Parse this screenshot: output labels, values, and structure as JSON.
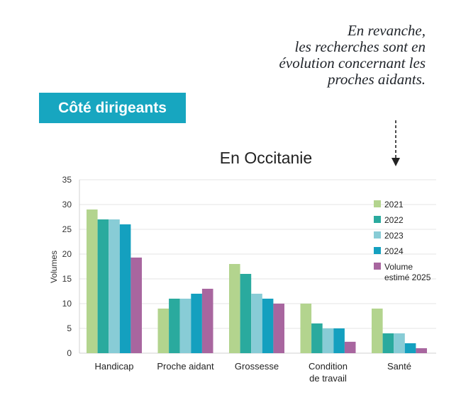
{
  "callout": {
    "lines": [
      "En revanche,",
      "les recherches sont en",
      "évolution concernant les",
      "proches aidants."
    ]
  },
  "badge": {
    "label": "Côté dirigeants",
    "color": "#17a6c0"
  },
  "chart_data": {
    "type": "bar",
    "title": "En Occitanie",
    "ylabel": "Volumes",
    "xlabel": "",
    "ylim": [
      0,
      35
    ],
    "yticks": [
      0,
      5,
      10,
      15,
      20,
      25,
      30,
      35
    ],
    "categories": [
      [
        "Handicap"
      ],
      [
        "Proche aidant"
      ],
      [
        "Grossesse"
      ],
      [
        "Condition",
        "de travail"
      ],
      [
        "Santé"
      ]
    ],
    "grid": true,
    "legend_position": "right",
    "series": [
      {
        "name": [
          "2021"
        ],
        "color": "#b3d48e",
        "values": [
          29,
          9,
          18,
          10,
          9
        ]
      },
      {
        "name": [
          "2022"
        ],
        "color": "#2aaa9e",
        "values": [
          27,
          11,
          16,
          6,
          4
        ]
      },
      {
        "name": [
          "2023"
        ],
        "color": "#88ccd6",
        "values": [
          27,
          11,
          12,
          5,
          4
        ]
      },
      {
        "name": [
          "2024"
        ],
        "color": "#14a0bf",
        "values": [
          26,
          12,
          11,
          5,
          2
        ]
      },
      {
        "name": [
          "Volume",
          "estimé 2025"
        ],
        "color": "#a8669f",
        "values": [
          19.3,
          13,
          10,
          2.3,
          1
        ]
      }
    ]
  }
}
